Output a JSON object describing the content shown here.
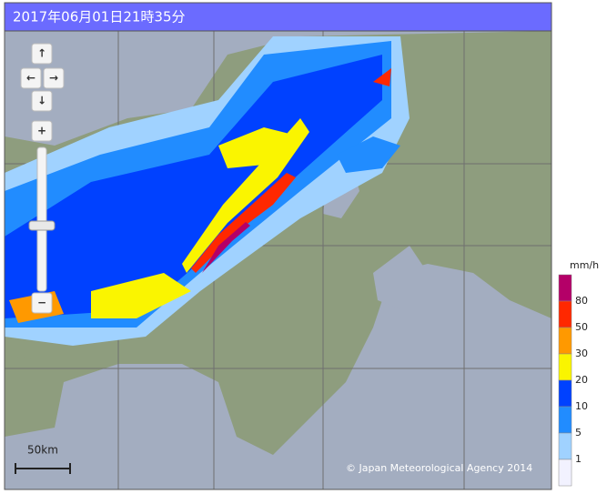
{
  "header": {
    "title": "2017年06月01日21時35分"
  },
  "controls": {
    "pan_up": "↑",
    "pan_left": "←",
    "pan_right": "→",
    "pan_down": "↓",
    "zoom_in": "+",
    "zoom_out": "−"
  },
  "scale_bar": "50km",
  "attribution": "© Japan Meteorological Agency 2014",
  "legend": {
    "unit": "mm/h",
    "labels": [
      80,
      50,
      30,
      20,
      10,
      5,
      1
    ],
    "colors": [
      "#b40068",
      "#ff2800",
      "#ff9900",
      "#faf500",
      "#0041ff",
      "#218cff",
      "#a0d2ff",
      "#f2f2ff"
    ]
  }
}
